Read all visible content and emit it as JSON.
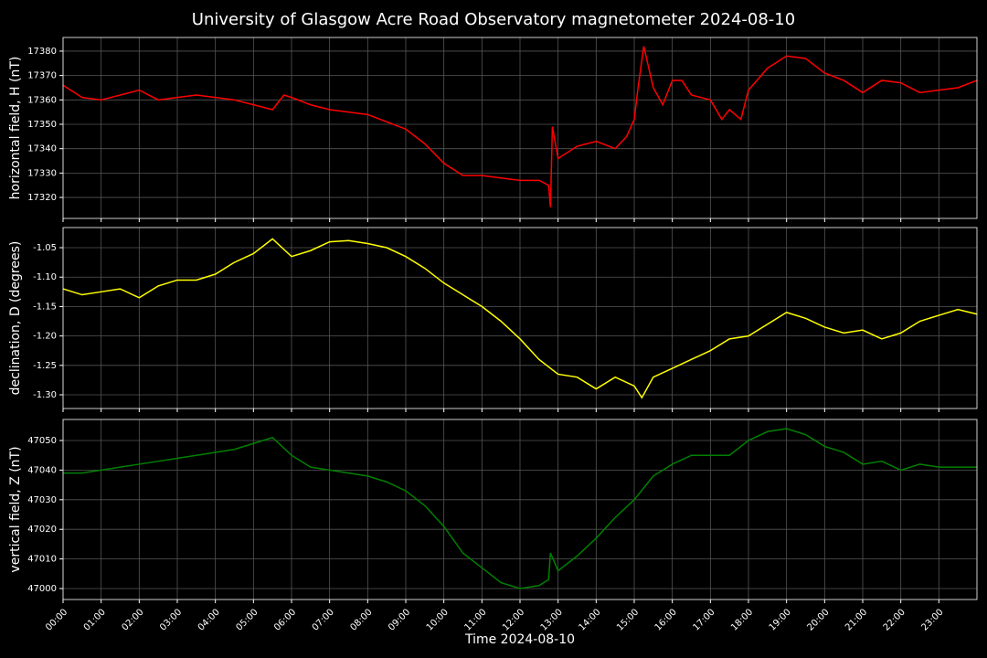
{
  "chart_data": [
    {
      "type": "line",
      "title": "University of Glasgow Acre Road Observatory magnetometer 2024-08-10",
      "ylabel": "horizontal field, H (nT)",
      "x": [
        0,
        0.5,
        1,
        1.5,
        2,
        2.5,
        3,
        3.5,
        4,
        4.5,
        5,
        5.5,
        5.8,
        6,
        6.5,
        7,
        7.5,
        8,
        8.5,
        9,
        9.5,
        10,
        10.5,
        11,
        11.5,
        12,
        12.5,
        12.75,
        12.8,
        12.85,
        13,
        13.5,
        14,
        14.5,
        14.8,
        15,
        15.1,
        15.25,
        15.5,
        15.75,
        16,
        16.25,
        16.5,
        17,
        17.3,
        17.5,
        17.8,
        18,
        18.5,
        19,
        19.5,
        20,
        20.5,
        21,
        21.5,
        22,
        22.5,
        23,
        23.5,
        24
      ],
      "series": [
        {
          "color": "#ff0000",
          "values": [
            17366,
            17361,
            17360,
            17362,
            17364,
            17360,
            17361,
            17362,
            17361,
            17360,
            17358,
            17356,
            17362,
            17361,
            17358,
            17356,
            17355,
            17354,
            17351,
            17348,
            17342,
            17334,
            17329,
            17329,
            17328,
            17327,
            17327,
            17325,
            17316,
            17349,
            17336,
            17341,
            17343,
            17340,
            17345,
            17352,
            17365,
            17382,
            17365,
            17358,
            17368,
            17368,
            17362,
            17360,
            17352,
            17356,
            17352,
            17364,
            17373,
            17378,
            17377,
            17371,
            17368,
            17363,
            17368,
            17367,
            17363,
            17364,
            17365,
            17368
          ]
        }
      ],
      "xlim": [
        0,
        24
      ],
      "ylim": [
        17311.4,
        17385.6
      ],
      "yticks": [
        17320,
        17330,
        17340,
        17350,
        17360,
        17370,
        17380
      ],
      "grid": true
    },
    {
      "type": "line",
      "ylabel": "declination, D (degrees)",
      "x": [
        0,
        0.5,
        1,
        1.5,
        2,
        2.5,
        3,
        3.5,
        4,
        4.5,
        5,
        5.5,
        6,
        6.5,
        7,
        7.5,
        8,
        8.5,
        9,
        9.5,
        10,
        10.5,
        11,
        11.5,
        12,
        12.5,
        13,
        13.5,
        14,
        14.5,
        15,
        15.2,
        15.5,
        16,
        16.5,
        17,
        17.5,
        18,
        18.5,
        19,
        19.5,
        20,
        20.5,
        21,
        21.5,
        22,
        22.5,
        23,
        23.5,
        24
      ],
      "series": [
        {
          "color": "#ffff00",
          "values": [
            -1.12,
            -1.13,
            -1.125,
            -1.12,
            -1.135,
            -1.115,
            -1.105,
            -1.105,
            -1.095,
            -1.075,
            -1.06,
            -1.035,
            -1.065,
            -1.055,
            -1.04,
            -1.038,
            -1.043,
            -1.05,
            -1.065,
            -1.085,
            -1.11,
            -1.13,
            -1.15,
            -1.175,
            -1.205,
            -1.24,
            -1.265,
            -1.27,
            -1.29,
            -1.27,
            -1.285,
            -1.305,
            -1.27,
            -1.255,
            -1.24,
            -1.225,
            -1.205,
            -1.2,
            -1.18,
            -1.16,
            -1.17,
            -1.185,
            -1.195,
            -1.19,
            -1.205,
            -1.195,
            -1.175,
            -1.165,
            -1.155,
            -1.163
          ]
        }
      ],
      "xlim": [
        0,
        24
      ],
      "ylim": [
        -1.3233,
        -1.0158
      ],
      "yticks": [
        {
          "value": -1.3,
          "label": "-1.30"
        },
        -1.25,
        {
          "value": -1.2,
          "label": "-1.20"
        },
        -1.15,
        {
          "value": -1.1,
          "label": "-1.10"
        },
        -1.05
      ],
      "grid": true
    },
    {
      "type": "line",
      "ylabel": "vertical field, Z (nT)",
      "xlabel": "Time 2024-08-10",
      "x": [
        0,
        0.5,
        1,
        1.5,
        2,
        2.5,
        3,
        3.5,
        4,
        4.5,
        5,
        5.5,
        6,
        6.5,
        7,
        7.5,
        8,
        8.5,
        9,
        9.5,
        10,
        10.5,
        11,
        11.5,
        12,
        12.5,
        12.75,
        12.8,
        13,
        13.5,
        14,
        14.5,
        15,
        15.5,
        16,
        16.5,
        17,
        17.5,
        18,
        18.5,
        19,
        19.5,
        20,
        20.5,
        21,
        21.5,
        22,
        22.5,
        23,
        23.5,
        24
      ],
      "series": [
        {
          "color": "#008000",
          "values": [
            47039,
            47039,
            47040,
            47041,
            47042,
            47043,
            47044,
            47045,
            47046,
            47047,
            47049,
            47051,
            47045,
            47041,
            47040,
            47039,
            47038,
            47036,
            47033,
            47028,
            47021,
            47012,
            47007,
            47002,
            47000,
            47001,
            47003,
            47012,
            47006,
            47011,
            47017,
            47024,
            47030,
            47038,
            47042,
            47045,
            47045,
            47045,
            47050,
            47053,
            47054,
            47052,
            47048,
            47046,
            47042,
            47043,
            47040,
            47042,
            47041,
            47041,
            47041
          ]
        }
      ],
      "xlim": [
        0,
        24
      ],
      "ylim": [
        46996.3,
        47057.1
      ],
      "yticks": [
        47000,
        47010,
        47020,
        47030,
        47040,
        47050
      ],
      "xticks": [
        {
          "value": 0,
          "label": "00:00"
        },
        {
          "value": 1,
          "label": "01:00"
        },
        {
          "value": 2,
          "label": "02:00"
        },
        {
          "value": 3,
          "label": "03:00"
        },
        {
          "value": 4,
          "label": "04:00"
        },
        {
          "value": 5,
          "label": "05:00"
        },
        {
          "value": 6,
          "label": "06:00"
        },
        {
          "value": 7,
          "label": "07:00"
        },
        {
          "value": 8,
          "label": "08:00"
        },
        {
          "value": 9,
          "label": "09:00"
        },
        {
          "value": 10,
          "label": "10:00"
        },
        {
          "value": 11,
          "label": "11:00"
        },
        {
          "value": 12,
          "label": "12:00"
        },
        {
          "value": 13,
          "label": "13:00"
        },
        {
          "value": 14,
          "label": "14:00"
        },
        {
          "value": 15,
          "label": "15:00"
        },
        {
          "value": 16,
          "label": "16:00"
        },
        {
          "value": 17,
          "label": "17:00"
        },
        {
          "value": 18,
          "label": "18:00"
        },
        {
          "value": 19,
          "label": "19:00"
        },
        {
          "value": 20,
          "label": "20:00"
        },
        {
          "value": 21,
          "label": "21:00"
        },
        {
          "value": 22,
          "label": "22:00"
        },
        {
          "value": 23,
          "label": "23:00"
        }
      ],
      "grid": true
    }
  ]
}
